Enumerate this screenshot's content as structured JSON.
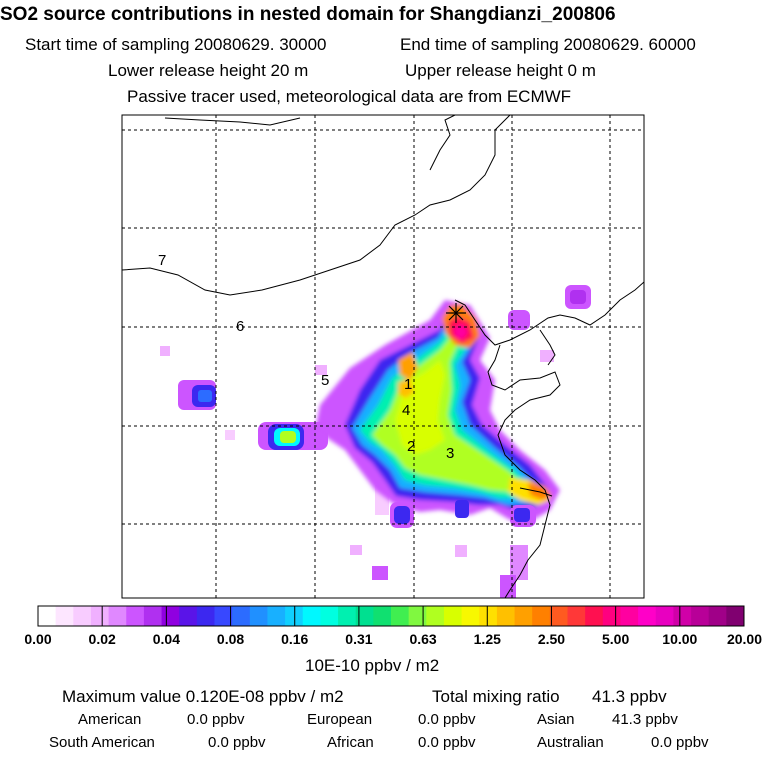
{
  "header": {
    "title": "SO2 source contributions in nested domain for Shangdianzi_200806",
    "start_label": "Start time of sampling 20080629. 30000",
    "end_label": "End time of sampling 20080629. 60000",
    "lower_label": "Lower release height   20 m",
    "upper_label": "Upper release height    0 m",
    "tracer_label": "Passive tracer used, meteorological data are from ECMWF"
  },
  "chart_data": {
    "type": "heatmap",
    "title": "SO2 source contributions in nested domain for Shangdianzi_200806",
    "region_labels": [
      "1",
      "2",
      "3",
      "4",
      "5",
      "6",
      "7"
    ],
    "receptor": "Shangdianzi",
    "grid": true,
    "colorbar": {
      "ticks": [
        "0.00",
        "0.02",
        "0.04",
        "0.08",
        "0.16",
        "0.31",
        "0.63",
        "1.25",
        "2.50",
        "5.00",
        "10.00",
        "20.00"
      ],
      "unit": "10E-10 ppbv / m2",
      "colors": [
        "#ffffff",
        "#fde6ff",
        "#f8ccff",
        "#f0b0ff",
        "#e088ff",
        "#cc55ff",
        "#b030f0",
        "#9000e0",
        "#5a14e8",
        "#3c28f0",
        "#3848ff",
        "#2c6cff",
        "#2090ff",
        "#18b0ff",
        "#10d0ff",
        "#00f8ff",
        "#00ffe0",
        "#00f0b0",
        "#00e090",
        "#10e070",
        "#40ee50",
        "#80f840",
        "#b0ff20",
        "#d8ff00",
        "#f8f800",
        "#ffe000",
        "#ffc000",
        "#ffa000",
        "#ff8000",
        "#ff5a20",
        "#ff3838",
        "#ff1050",
        "#ff0080",
        "#ff00a0",
        "#ff00c8",
        "#e800c0",
        "#d000a8",
        "#b80098",
        "#a00088",
        "#800070"
      ]
    }
  },
  "footer": {
    "max_label": "Maximum value  0.120E-08 ppbv / m2",
    "total_label": "Total mixing ratio",
    "total_value": "41.3 ppbv",
    "american_label": "American",
    "american_value": "0.0 ppbv",
    "european_label": "European",
    "european_value": "0.0 ppbv",
    "asian_label": "Asian",
    "asian_value": "41.3 ppbv",
    "south_american_label": "South American",
    "south_american_value": "0.0 ppbv",
    "african_label": "African",
    "african_value": "0.0 ppbv",
    "australian_label": "Australian",
    "australian_value": "0.0 ppbv"
  },
  "colors": {
    "frame": "#000000",
    "grid": "#000000",
    "coast": "#000000"
  }
}
